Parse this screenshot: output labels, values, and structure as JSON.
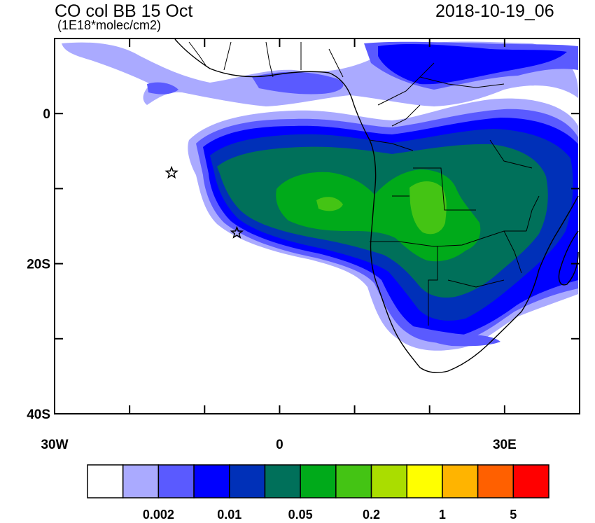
{
  "header": {
    "title": "CO col BB 15 Oct",
    "subtitle": "(1E18*molec/cm2)",
    "timestamp": "2018-10-19_06"
  },
  "map": {
    "lon_range": [
      -30,
      40
    ],
    "lat_range": [
      -40,
      10
    ],
    "lat_labels": [
      {
        "lat": 0,
        "text": "0"
      },
      {
        "lat": -20,
        "text": "20S"
      },
      {
        "lat": -40,
        "text": "40S"
      }
    ],
    "lon_labels": [
      {
        "lon": -30,
        "text": "30W"
      },
      {
        "lon": 0,
        "text": "0"
      },
      {
        "lon": 30,
        "text": "30E"
      }
    ],
    "markers": [
      {
        "name": "star-marker",
        "lon": -14.4,
        "lat": -7.9
      },
      {
        "name": "star-marker",
        "lon": -5.7,
        "lat": -15.9
      }
    ]
  },
  "colorbar": {
    "colors": [
      "#ffffff",
      "#aaaaff",
      "#5a5aff",
      "#0000ff",
      "#0030b8",
      "#00705a",
      "#00aa1a",
      "#44c414",
      "#aadd00",
      "#ffff00",
      "#ffb400",
      "#ff6000",
      "#ff0000"
    ],
    "labels": [
      "0.002",
      "0.01",
      "0.05",
      "0.2",
      "1",
      "5"
    ]
  }
}
